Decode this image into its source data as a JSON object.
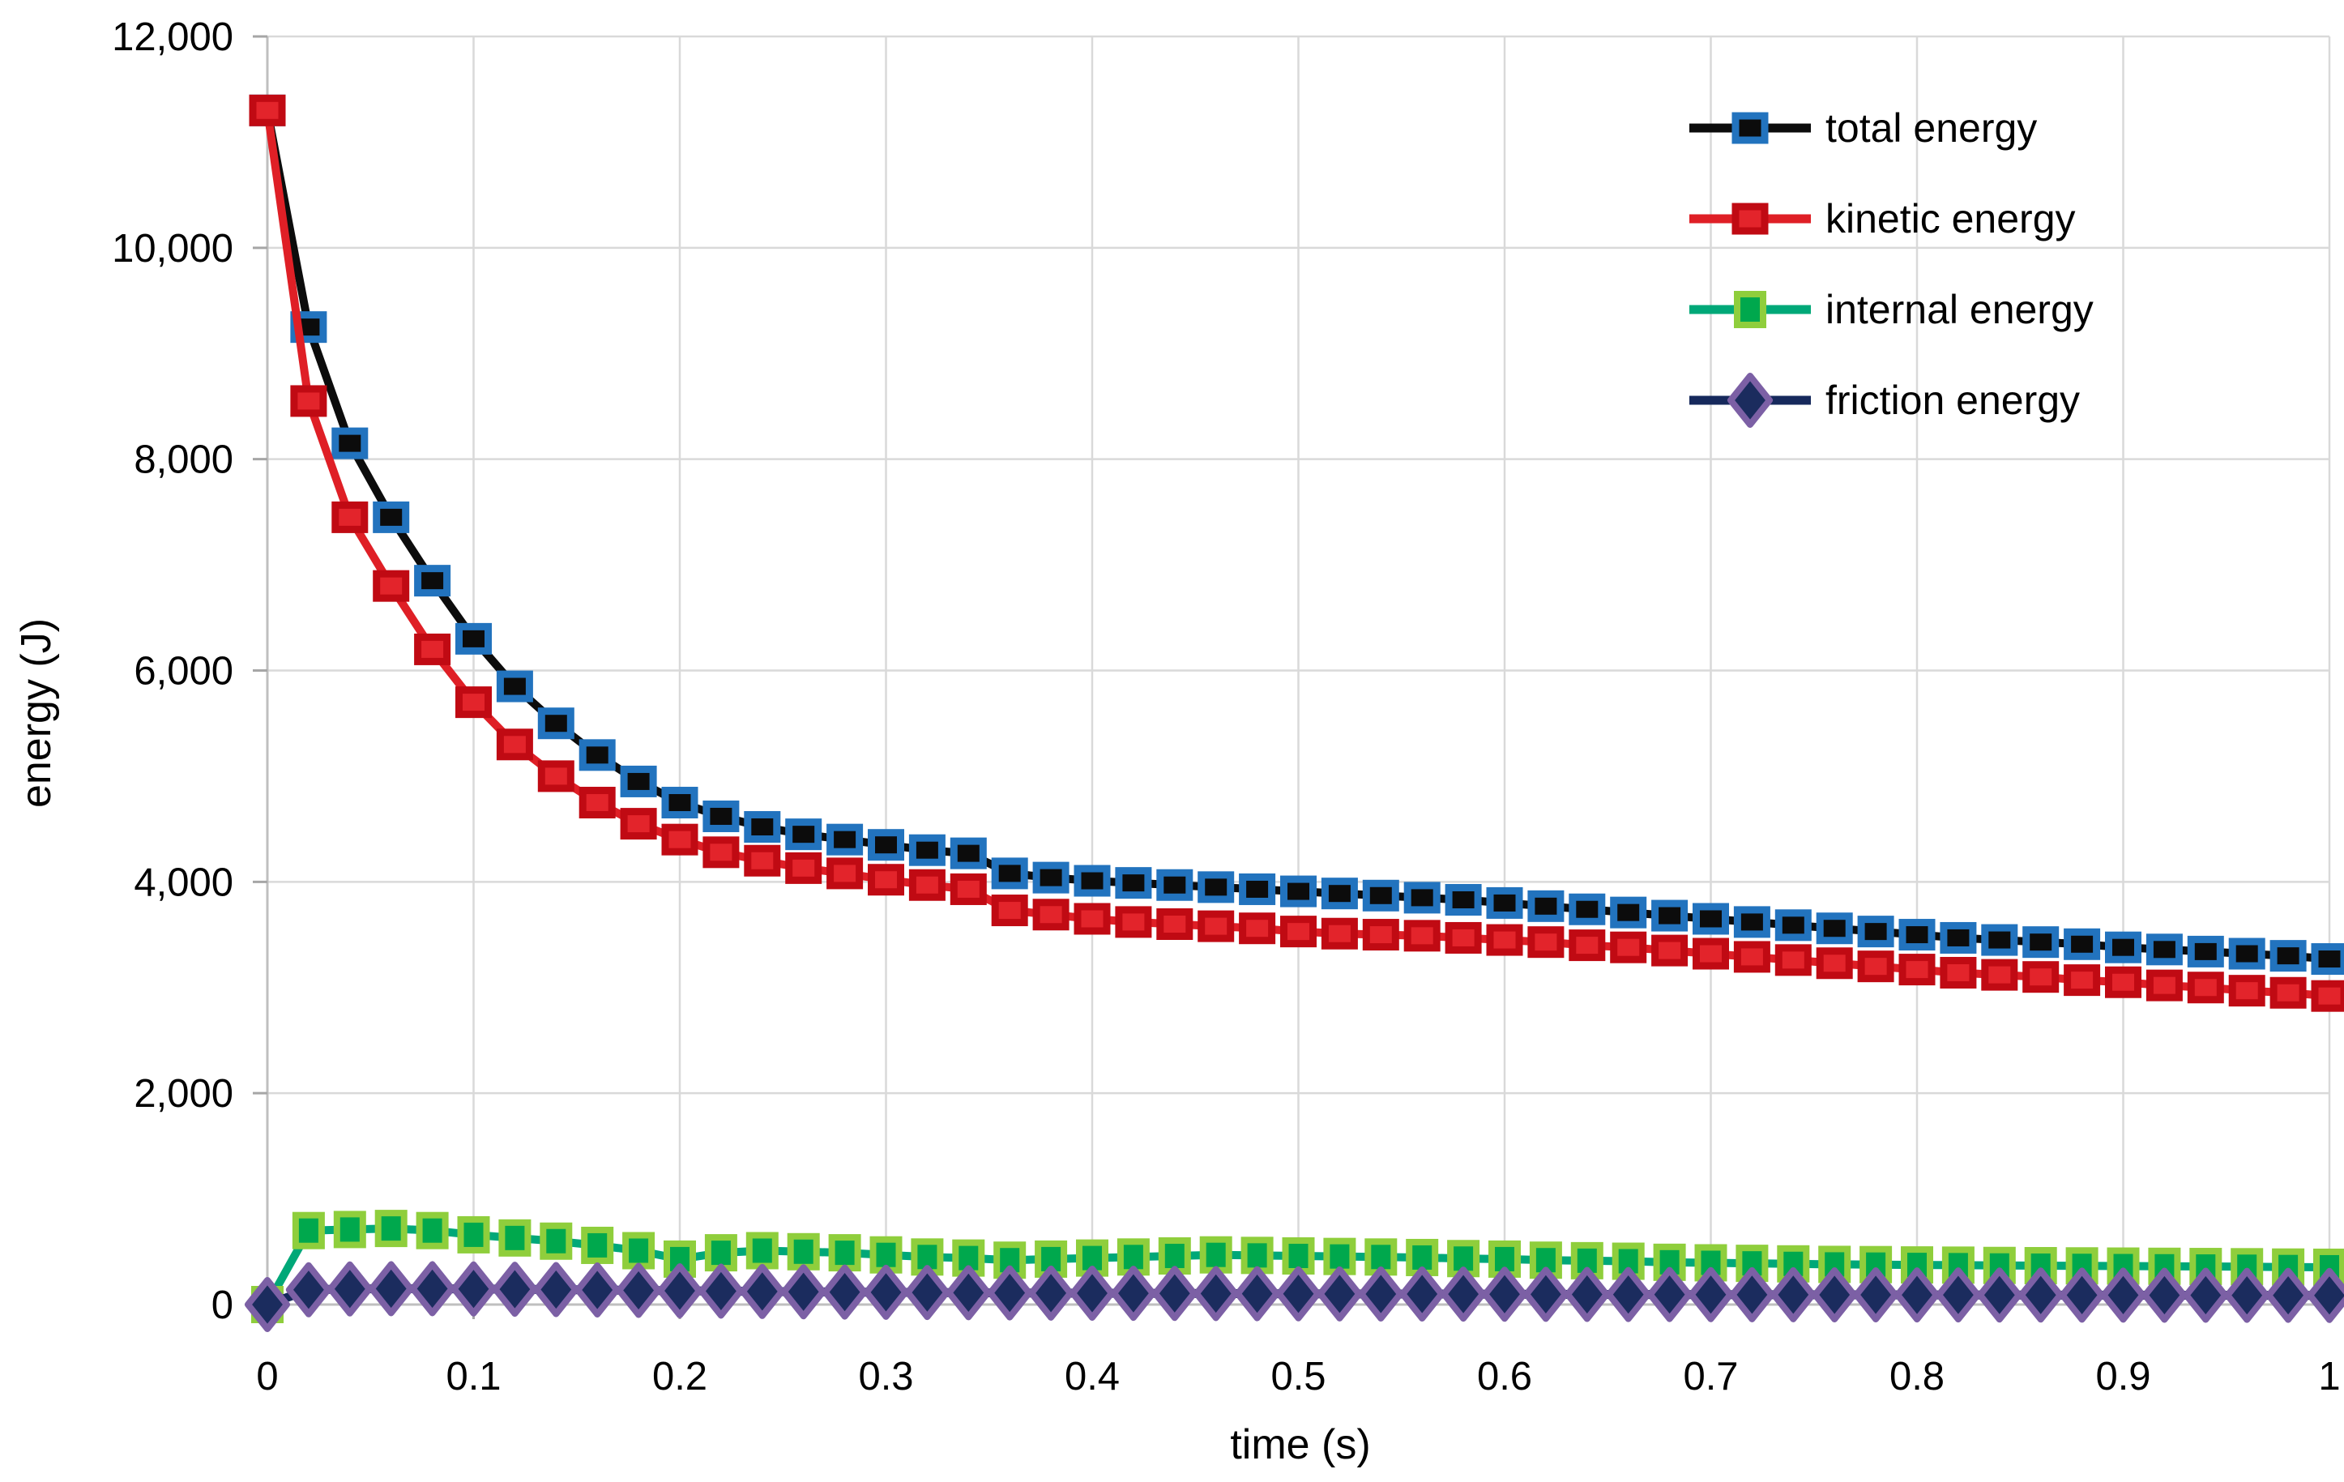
{
  "chart_data": {
    "type": "line",
    "title": "",
    "xlabel": "time (s)",
    "ylabel": "energy (J)",
    "xlim": [
      0,
      1
    ],
    "ylim": [
      0,
      12000
    ],
    "grid": true,
    "legend_position": "top-right",
    "colors": {
      "gridline": "#d9d9d9",
      "axis_line": "#bfbfbf",
      "tick_mark": "#a6a6a6",
      "text": "#000000"
    },
    "x_ticks": [
      {
        "v": 0.0,
        "label": "0"
      },
      {
        "v": 0.1,
        "label": "0.1"
      },
      {
        "v": 0.2,
        "label": "0.2"
      },
      {
        "v": 0.3,
        "label": "0.3"
      },
      {
        "v": 0.4,
        "label": "0.4"
      },
      {
        "v": 0.5,
        "label": "0.5"
      },
      {
        "v": 0.6,
        "label": "0.6"
      },
      {
        "v": 0.7,
        "label": "0.7"
      },
      {
        "v": 0.8,
        "label": "0.8"
      },
      {
        "v": 0.9,
        "label": "0.9"
      },
      {
        "v": 1.0,
        "label": "1"
      }
    ],
    "y_ticks": [
      {
        "v": 0,
        "label": "0"
      },
      {
        "v": 2000,
        "label": "2,000"
      },
      {
        "v": 4000,
        "label": "4,000"
      },
      {
        "v": 6000,
        "label": "6,000"
      },
      {
        "v": 8000,
        "label": "8,000"
      },
      {
        "v": 10000,
        "label": "10,000"
      },
      {
        "v": 12000,
        "label": "12,000"
      }
    ],
    "x": [
      0,
      0.02,
      0.04,
      0.06,
      0.08,
      0.1,
      0.12,
      0.14,
      0.16,
      0.18,
      0.2,
      0.22,
      0.24,
      0.26,
      0.28,
      0.3,
      0.32,
      0.34,
      0.36,
      0.38,
      0.4,
      0.42,
      0.44,
      0.46,
      0.48,
      0.5,
      0.52,
      0.54,
      0.56,
      0.58,
      0.6,
      0.62,
      0.64,
      0.66,
      0.68,
      0.7,
      0.72,
      0.74,
      0.76,
      0.78,
      0.8,
      0.82,
      0.84,
      0.86,
      0.88,
      0.9,
      0.92,
      0.94,
      0.96,
      0.98,
      1.0
    ],
    "series": [
      {
        "name": "total energy",
        "marker": "square",
        "line_color": "#0c0c0c",
        "marker_fill": "#0c0c0c",
        "marker_border": "#2273be",
        "values": [
          11300,
          9250,
          8150,
          7450,
          6850,
          6300,
          5850,
          5500,
          5200,
          4950,
          4750,
          4620,
          4520,
          4450,
          4400,
          4350,
          4300,
          4270,
          4080,
          4040,
          4010,
          3990,
          3970,
          3950,
          3930,
          3910,
          3890,
          3870,
          3850,
          3830,
          3800,
          3770,
          3740,
          3710,
          3680,
          3650,
          3620,
          3590,
          3560,
          3530,
          3500,
          3470,
          3450,
          3430,
          3410,
          3380,
          3360,
          3340,
          3320,
          3300,
          3270
        ]
      },
      {
        "name": "kinetic energy",
        "marker": "square",
        "line_color": "#df1f26",
        "marker_fill": "#e3242b",
        "marker_border": "#c00a13",
        "values": [
          11300,
          8550,
          7450,
          6800,
          6200,
          5700,
          5300,
          5000,
          4750,
          4550,
          4400,
          4280,
          4200,
          4130,
          4080,
          4020,
          3970,
          3930,
          3730,
          3690,
          3650,
          3620,
          3600,
          3580,
          3560,
          3530,
          3510,
          3500,
          3490,
          3470,
          3450,
          3430,
          3400,
          3380,
          3350,
          3320,
          3290,
          3260,
          3230,
          3200,
          3170,
          3140,
          3120,
          3100,
          3070,
          3050,
          3020,
          3000,
          2970,
          2950,
          2920
        ]
      },
      {
        "name": "internal energy",
        "marker": "square",
        "line_color": "#00a878",
        "marker_fill": "#00a84d",
        "marker_border": "#8fce3c",
        "values": [
          0,
          700,
          710,
          720,
          700,
          660,
          630,
          600,
          560,
          510,
          430,
          490,
          510,
          500,
          490,
          470,
          450,
          440,
          420,
          430,
          440,
          450,
          460,
          470,
          465,
          460,
          455,
          450,
          445,
          435,
          430,
          420,
          415,
          410,
          400,
          395,
          390,
          385,
          380,
          378,
          375,
          373,
          370,
          368,
          366,
          364,
          362,
          360,
          358,
          355,
          353
        ]
      },
      {
        "name": "friction energy",
        "marker": "diamond",
        "line_color": "#16295c",
        "marker_fill": "#1b2c5e",
        "marker_border": "#7c60a5",
        "values": [
          0,
          140,
          148,
          150,
          150,
          148,
          145,
          142,
          138,
          134,
          130,
          127,
          124,
          121,
          118,
          116,
          114,
          112,
          110,
          108,
          107,
          106,
          105,
          104,
          103,
          102,
          101,
          100,
          100,
          99,
          98,
          97,
          96,
          95,
          95,
          94,
          93,
          93,
          92,
          92,
          91,
          91,
          90,
          90,
          89,
          89,
          88,
          88,
          87,
          87,
          86
        ]
      }
    ]
  }
}
